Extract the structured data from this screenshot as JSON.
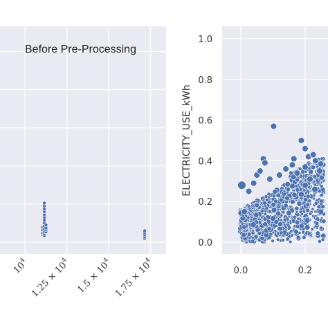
{
  "chart_data": [
    {
      "type": "scatter",
      "annotation": "Before Pre-Processing",
      "x_tick_labels": [
        "10",
        "1.25 × 10",
        "1.5 × 10",
        "1.75 × 10"
      ],
      "x_tick_exponent": "4",
      "x_ticks": [
        10000,
        12500,
        15000,
        17500
      ],
      "xlim": [
        8500,
        18100
      ],
      "ylim": [
        0,
        1.06
      ],
      "grid": true,
      "series": [
        {
          "color": "#4c72b0",
          "points": [
            [
              11050,
              0.04
            ],
            [
              11050,
              0.05
            ],
            [
              11050,
              0.065
            ],
            [
              11050,
              0.08
            ],
            [
              11150,
              0.035
            ],
            [
              11150,
              0.045
            ],
            [
              11150,
              0.055
            ],
            [
              11150,
              0.07
            ],
            [
              11150,
              0.085
            ],
            [
              11150,
              0.1
            ],
            [
              11150,
              0.115
            ],
            [
              11150,
              0.13
            ],
            [
              11150,
              0.145
            ],
            [
              11150,
              0.16
            ],
            [
              11150,
              0.175
            ],
            [
              11150,
              0.19
            ],
            [
              11150,
              0.205
            ],
            [
              11250,
              0.055
            ],
            [
              11250,
              0.065
            ],
            [
              11250,
              0.075
            ],
            [
              11250,
              0.09
            ],
            [
              17150,
              0.02
            ],
            [
              17150,
              0.03
            ],
            [
              17150,
              0.04
            ],
            [
              17150,
              0.05
            ],
            [
              17150,
              0.06
            ]
          ]
        }
      ]
    },
    {
      "type": "scatter",
      "ylabel": "ELECTRICITY_USE_kWh",
      "y_tick_labels": [
        "0.0",
        "0.2",
        "0.4",
        "0.6",
        "0.8",
        "1.0"
      ],
      "y_ticks": [
        0.0,
        0.2,
        0.4,
        0.6,
        0.8,
        1.0
      ],
      "x_tick_labels": [
        "0.0",
        "0.2"
      ],
      "x_ticks": [
        0.0,
        0.2
      ],
      "xlim": [
        -0.045,
        0.26
      ],
      "ylim": [
        -0.05,
        1.06
      ],
      "grid": true,
      "series": [
        {
          "color": "#4c72b0",
          "points": [
            [
              0.102,
              0.57
            ],
            [
              0.188,
              0.5
            ],
            [
              0.2,
              0.46
            ],
            [
              0.07,
              0.41
            ],
            [
              0.075,
              0.39
            ],
            [
              0.16,
              0.38
            ],
            [
              0.165,
              0.41
            ],
            [
              0.2,
              0.37
            ],
            [
              0.21,
              0.42
            ],
            [
              0.225,
              0.43
            ],
            [
              0.232,
              0.4
            ],
            [
              0.05,
              0.33
            ],
            [
              0.06,
              0.35
            ],
            [
              0.04,
              0.29
            ],
            [
              0.025,
              0.25
            ],
            [
              0.003,
              0.28
            ],
            [
              0.09,
              0.31
            ],
            [
              0.12,
              0.33
            ],
            [
              0.14,
              0.36
            ],
            [
              0.175,
              0.34
            ],
            [
              0.215,
              0.31
            ],
            [
              0.245,
              0.35
            ],
            [
              0.011,
              0.15
            ],
            [
              0.2,
              0.28
            ],
            [
              0.23,
              0.26
            ]
          ]
        }
      ]
    }
  ]
}
